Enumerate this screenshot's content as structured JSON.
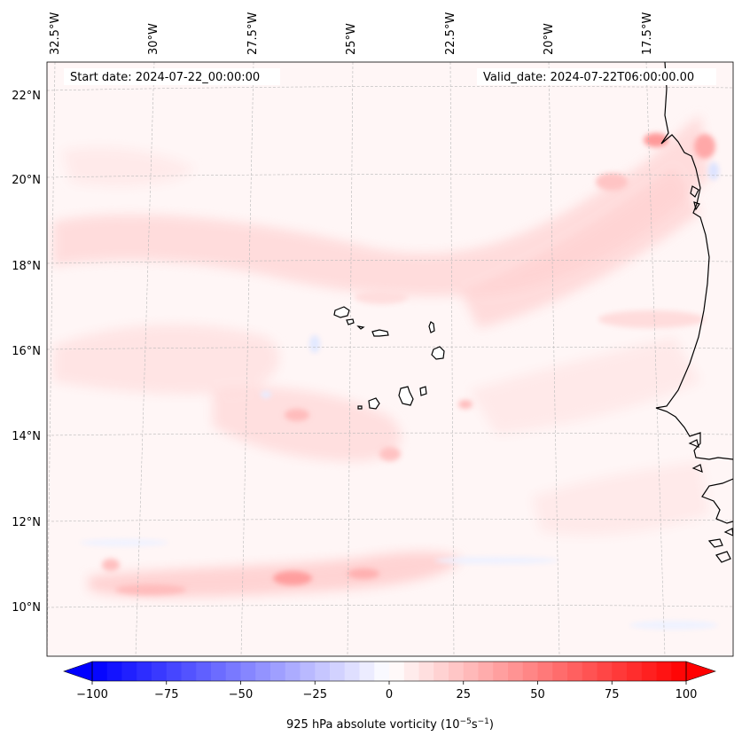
{
  "header": {
    "start_date": "Start date: 2024-07-22_00:00:00",
    "valid_date": "Valid_date: 2024-07-22T06:00:00.00"
  },
  "axes": {
    "longitude_labels": [
      "32.5°W",
      "30°W",
      "27.5°W",
      "25°W",
      "22.5°W",
      "20°W",
      "17.5°W"
    ],
    "latitude_labels": [
      "22°N",
      "20°N",
      "18°N",
      "16°N",
      "14°N",
      "12°N",
      "10°N"
    ]
  },
  "colorbar": {
    "label_prefix": "925 hPa absolute vorticity (10",
    "label_exp1": "−5",
    "label_mid": "s",
    "label_exp2": "−1",
    "label_suffix": ")",
    "ticks": [
      "−100",
      "−75",
      "−50",
      "−25",
      "0",
      "25",
      "50",
      "75",
      "100"
    ],
    "min": -100,
    "max": 100,
    "low_color": "#0000ff",
    "mid_color": "#ffffff",
    "high_color": "#ff0000"
  },
  "map": {
    "ocean_tint": "#fff5f5",
    "coastline_color": "#000000"
  }
}
